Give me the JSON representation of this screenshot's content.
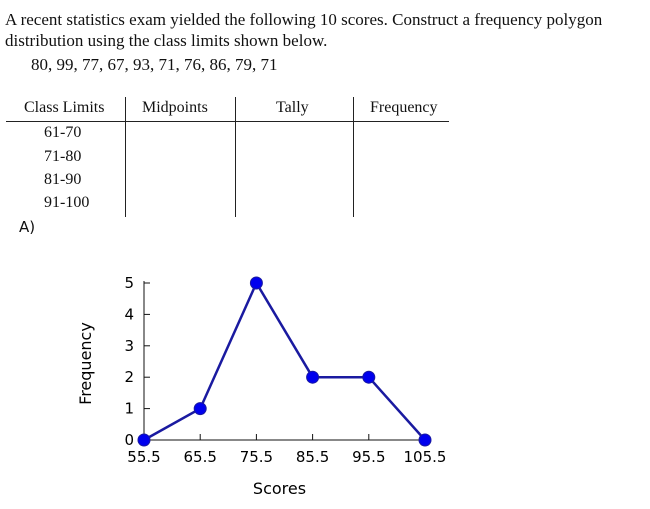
{
  "question": {
    "line1": "A recent statistics exam yielded the following 10 scores. Construct a frequency polygon",
    "line2": "distribution using the class limits shown below.",
    "scores": "80, 99, 77, 67, 93, 71, 76, 86, 79, 71"
  },
  "table": {
    "headers": [
      "Class Limits",
      "Midpoints",
      "Tally",
      "Frequency"
    ],
    "rows": [
      "61-70",
      "71-80",
      "81-90",
      "91-100"
    ]
  },
  "option_label": "A)",
  "chart_data": {
    "type": "line",
    "xlabel": "Scores",
    "ylabel": "Frequency",
    "x": [
      55.5,
      65.5,
      75.5,
      85.5,
      95.5,
      105.5
    ],
    "y": [
      0,
      1,
      5,
      2,
      2,
      0
    ],
    "xticks": [
      "55.5",
      "65.5",
      "75.5",
      "85.5",
      "95.5",
      "105.5"
    ],
    "yticks": [
      "0",
      "1",
      "2",
      "3",
      "4",
      "5"
    ],
    "xlim": [
      55.5,
      105.5
    ],
    "ylim": [
      0,
      5
    ],
    "grid": false,
    "line_color": "#1a1aa0",
    "marker_color": "#0000ee"
  }
}
